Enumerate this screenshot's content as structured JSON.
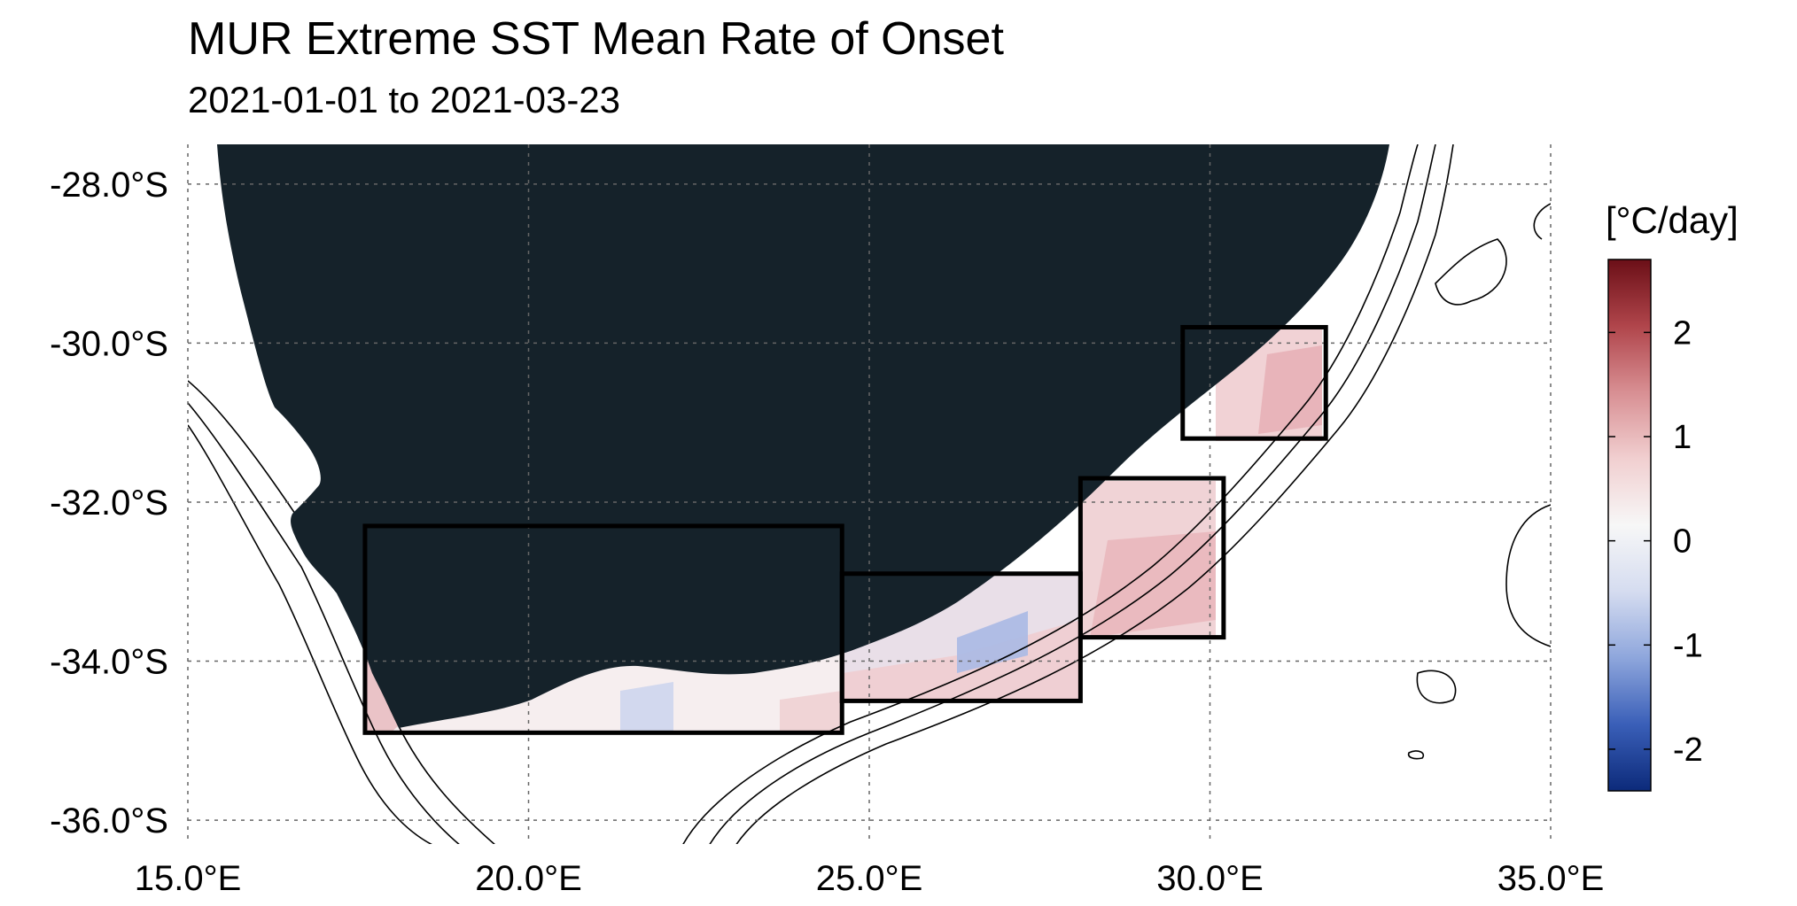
{
  "title": "MUR Extreme SST Mean Rate of Onset",
  "subtitle": "2021-01-01 to 2021-03-23",
  "map": {
    "lon_range": [
      15.0,
      35.0
    ],
    "lat_range": [
      -36.3,
      -27.5
    ],
    "lon_ticks": [
      "15.0°E",
      "20.0°E",
      "25.0°E",
      "30.0°E",
      "35.0°E"
    ],
    "lat_ticks": [
      "-28.0°S",
      "-30.0°S",
      "-32.0°S",
      "-34.0°S",
      "-36.0°S"
    ],
    "land_color": "#15222a",
    "grid": "dotted",
    "regions": [
      {
        "name": "region-west",
        "lon": [
          17.6,
          24.6
        ],
        "lat": [
          -34.9,
          -32.3
        ]
      },
      {
        "name": "region-south-central",
        "lon": [
          24.6,
          28.1
        ],
        "lat": [
          -34.5,
          -32.9
        ]
      },
      {
        "name": "region-south-east",
        "lon": [
          28.1,
          30.2
        ],
        "lat": [
          -33.7,
          -31.7
        ]
      },
      {
        "name": "region-north-east",
        "lon": [
          29.6,
          31.7
        ],
        "lat": [
          -31.2,
          -29.8
        ]
      }
    ]
  },
  "colorbar": {
    "label": "[°C/day]",
    "ticks": [
      "2",
      "1",
      "0",
      "-1",
      "-2"
    ],
    "range": [
      -2.4,
      2.7
    ],
    "colors": [
      "#0c2a7a",
      "#3a5fb8",
      "#8ea6dc",
      "#d5dcf0",
      "#f7f7f7",
      "#f1cfd0",
      "#d88f93",
      "#b0454b",
      "#6b0f17"
    ]
  }
}
